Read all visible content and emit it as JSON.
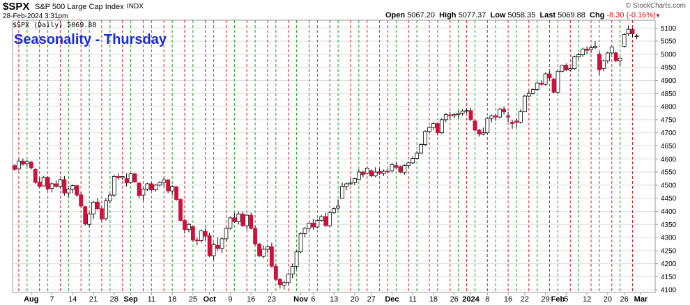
{
  "header": {
    "symbol": "$SPX",
    "name": "S&P 500 Large Cap Index",
    "exchange": "INDX",
    "datetime": "28-Feb-2024 3:31pm",
    "brand": "© StockCharts.com",
    "open_label": "Open",
    "open": "5067.20",
    "high_label": "High",
    "high": "5077.37",
    "low_label": "Low",
    "low": "5058.35",
    "last_label": "Last",
    "last": "5069.88",
    "chg_label": "Chg",
    "chg": "-8.30 (-0.16%)"
  },
  "legend": "$SPX (Daily) 5069.88",
  "overlay_title": "Seasonality - Thursday",
  "colors": {
    "up": "#ffffff",
    "down": "#d0103a",
    "red_line": "#d02020",
    "green_line": "#1a9a1a",
    "grid": "#dddddd",
    "overlay": "#1c2cd6"
  },
  "chart_data": {
    "type": "candlestick",
    "ylim": [
      4090,
      5130
    ],
    "yticks": [
      4100,
      4150,
      4200,
      4250,
      4300,
      4350,
      4400,
      4450,
      4500,
      4550,
      4600,
      4650,
      4700,
      4750,
      4800,
      4850,
      4900,
      4950,
      5000,
      5050,
      5100
    ],
    "xlabels": [
      {
        "label": "Aug",
        "bold": true,
        "i": 4
      },
      {
        "label": "7",
        "i": 9
      },
      {
        "label": "14",
        "i": 14
      },
      {
        "label": "21",
        "i": 19
      },
      {
        "label": "28",
        "i": 24
      },
      {
        "label": "Sep",
        "bold": true,
        "i": 28
      },
      {
        "label": "11",
        "i": 33
      },
      {
        "label": "18",
        "i": 38
      },
      {
        "label": "25",
        "i": 43
      },
      {
        "label": "Oct",
        "bold": true,
        "i": 47
      },
      {
        "label": "9",
        "i": 52
      },
      {
        "label": "16",
        "i": 57
      },
      {
        "label": "23",
        "i": 62
      },
      {
        "label": "Nov",
        "bold": true,
        "i": 69
      },
      {
        "label": "6",
        "i": 72
      },
      {
        "label": "13",
        "i": 77
      },
      {
        "label": "20",
        "i": 82
      },
      {
        "label": "27",
        "i": 86
      },
      {
        "label": "Dec",
        "bold": true,
        "i": 91
      },
      {
        "label": "11",
        "i": 96
      },
      {
        "label": "18",
        "i": 101
      },
      {
        "label": "26",
        "i": 106
      },
      {
        "label": "2024",
        "bold": true,
        "i": 110
      },
      {
        "label": "8",
        "i": 114
      },
      {
        "label": "16",
        "i": 119
      },
      {
        "label": "22",
        "i": 123
      },
      {
        "label": "29",
        "i": 128
      },
      {
        "label": "Feb",
        "bold": true,
        "i": 131
      },
      {
        "label": "5",
        "i": 133
      },
      {
        "label": "12",
        "i": 138
      },
      {
        "label": "20",
        "i": 143
      },
      {
        "label": "26",
        "i": 147
      },
      {
        "label": "Mar",
        "bold": true,
        "i": 151
      }
    ],
    "red_lines": [
      1,
      6,
      11,
      16,
      21,
      26,
      31,
      36,
      41,
      46,
      51,
      56,
      61,
      66,
      71,
      76,
      81,
      85,
      90,
      95,
      100,
      105,
      109,
      114,
      119,
      124,
      129,
      134,
      139,
      144,
      149
    ],
    "green_lines": [
      3,
      8,
      13,
      18,
      23,
      28,
      33,
      38,
      43,
      48,
      53,
      58,
      63,
      68,
      73,
      78,
      83,
      88,
      92,
      97,
      102,
      107,
      111,
      116,
      121,
      126,
      131,
      136,
      141,
      146
    ],
    "candles": [
      [
        4575,
        4580,
        4555,
        4560
      ],
      [
        4562,
        4600,
        4555,
        4592
      ],
      [
        4592,
        4602,
        4575,
        4580
      ],
      [
        4582,
        4596,
        4570,
        4590
      ],
      [
        4588,
        4592,
        4560,
        4566
      ],
      [
        4560,
        4565,
        4505,
        4510
      ],
      [
        4512,
        4528,
        4490,
        4495
      ],
      [
        4497,
        4535,
        4495,
        4530
      ],
      [
        4530,
        4534,
        4478,
        4485
      ],
      [
        4488,
        4510,
        4472,
        4505
      ],
      [
        4505,
        4518,
        4490,
        4495
      ],
      [
        4495,
        4525,
        4488,
        4521
      ],
      [
        4521,
        4535,
        4460,
        4470
      ],
      [
        4470,
        4490,
        4455,
        4485
      ],
      [
        4484,
        4502,
        4470,
        4498
      ],
      [
        4498,
        4500,
        4455,
        4462
      ],
      [
        4463,
        4473,
        4415,
        4420
      ],
      [
        4418,
        4420,
        4345,
        4352
      ],
      [
        4350,
        4395,
        4340,
        4390
      ],
      [
        4390,
        4440,
        4370,
        4435
      ],
      [
        4435,
        4450,
        4405,
        4410
      ],
      [
        4410,
        4420,
        4360,
        4370
      ],
      [
        4372,
        4450,
        4365,
        4440
      ],
      [
        4440,
        4470,
        4430,
        4462
      ],
      [
        4462,
        4540,
        4455,
        4533
      ],
      [
        4533,
        4545,
        4520,
        4528
      ],
      [
        4528,
        4535,
        4520,
        4533
      ],
      [
        4525,
        4545,
        4495,
        4508
      ],
      [
        4510,
        4546,
        4505,
        4543
      ],
      [
        4543,
        4548,
        4510,
        4512
      ],
      [
        4508,
        4512,
        4450,
        4460
      ],
      [
        4462,
        4490,
        4440,
        4485
      ],
      [
        4485,
        4508,
        4478,
        4505
      ],
      [
        4505,
        4510,
        4478,
        4482
      ],
      [
        4482,
        4505,
        4475,
        4500
      ],
      [
        4500,
        4515,
        4495,
        4510
      ],
      [
        4510,
        4530,
        4495,
        4520
      ],
      [
        4520,
        4523,
        4470,
        4478
      ],
      [
        4478,
        4500,
        4462,
        4495
      ],
      [
        4494,
        4496,
        4440,
        4445
      ],
      [
        4445,
        4450,
        4360,
        4365
      ],
      [
        4365,
        4372,
        4315,
        4330
      ],
      [
        4330,
        4355,
        4320,
        4350
      ],
      [
        4342,
        4345,
        4285,
        4290
      ],
      [
        4290,
        4300,
        4270,
        4288
      ],
      [
        4288,
        4330,
        4280,
        4325
      ],
      [
        4323,
        4335,
        4290,
        4305
      ],
      [
        4307,
        4318,
        4225,
        4230
      ],
      [
        4230,
        4280,
        4215,
        4273
      ],
      [
        4270,
        4300,
        4250,
        4258
      ],
      [
        4258,
        4300,
        4240,
        4295
      ],
      [
        4295,
        4340,
        4285,
        4335
      ],
      [
        4335,
        4380,
        4330,
        4375
      ],
      [
        4375,
        4393,
        4355,
        4360
      ],
      [
        4360,
        4400,
        4350,
        4390
      ],
      [
        4390,
        4400,
        4340,
        4345
      ],
      [
        4345,
        4390,
        4330,
        4385
      ],
      [
        4385,
        4395,
        4330,
        4335
      ],
      [
        4335,
        4345,
        4270,
        4275
      ],
      [
        4275,
        4280,
        4225,
        4230
      ],
      [
        4228,
        4270,
        4220,
        4255
      ],
      [
        4255,
        4270,
        4240,
        4265
      ],
      [
        4265,
        4280,
        4185,
        4190
      ],
      [
        4190,
        4200,
        4135,
        4140
      ],
      [
        4140,
        4145,
        4105,
        4120
      ],
      [
        4118,
        4135,
        4102,
        4128
      ],
      [
        4128,
        4165,
        4120,
        4160
      ],
      [
        4160,
        4200,
        4145,
        4190
      ],
      [
        4190,
        4250,
        4180,
        4245
      ],
      [
        4245,
        4320,
        4240,
        4315
      ],
      [
        4315,
        4340,
        4300,
        4335
      ],
      [
        4335,
        4360,
        4325,
        4355
      ],
      [
        4355,
        4370,
        4330,
        4340
      ],
      [
        4340,
        4370,
        4335,
        4365
      ],
      [
        4365,
        4385,
        4360,
        4380
      ],
      [
        4380,
        4395,
        4340,
        4345
      ],
      [
        4345,
        4400,
        4340,
        4395
      ],
      [
        4395,
        4415,
        4390,
        4410
      ],
      [
        4412,
        4445,
        4405,
        4420
      ],
      [
        4450,
        4510,
        4448,
        4495
      ],
      [
        4495,
        4510,
        4480,
        4505
      ],
      [
        4505,
        4525,
        4500,
        4508
      ],
      [
        4510,
        4528,
        4500,
        4525
      ],
      [
        4522,
        4560,
        4520,
        4550
      ],
      [
        4550,
        4555,
        4530,
        4540
      ],
      [
        4545,
        4570,
        4540,
        4565
      ],
      [
        4555,
        4560,
        4530,
        4535
      ],
      [
        4535,
        4568,
        4530,
        4550
      ],
      [
        4552,
        4562,
        4540,
        4545
      ],
      [
        4545,
        4560,
        4535,
        4553
      ],
      [
        4553,
        4562,
        4545,
        4550
      ],
      [
        4555,
        4585,
        4548,
        4578
      ],
      [
        4575,
        4590,
        4560,
        4568
      ],
      [
        4570,
        4575,
        4545,
        4550
      ],
      [
        4548,
        4580,
        4540,
        4575
      ],
      [
        4575,
        4590,
        4565,
        4585
      ],
      [
        4585,
        4610,
        4580,
        4602
      ],
      [
        4602,
        4630,
        4598,
        4622
      ],
      [
        4622,
        4660,
        4620,
        4655
      ],
      [
        4655,
        4710,
        4650,
        4705
      ],
      [
        4705,
        4725,
        4700,
        4720
      ],
      [
        4720,
        4740,
        4710,
        4735
      ],
      [
        4735,
        4740,
        4690,
        4700
      ],
      [
        4700,
        4755,
        4695,
        4750
      ],
      [
        4750,
        4775,
        4740,
        4770
      ],
      [
        4768,
        4780,
        4750,
        4765
      ],
      [
        4765,
        4775,
        4755,
        4770
      ],
      [
        4770,
        4785,
        4755,
        4775
      ],
      [
        4775,
        4790,
        4765,
        4783
      ],
      [
        4783,
        4793,
        4775,
        4785
      ],
      [
        4785,
        4795,
        4745,
        4750
      ],
      [
        4745,
        4750,
        4705,
        4710
      ],
      [
        4710,
        4715,
        4685,
        4695
      ],
      [
        4695,
        4720,
        4690,
        4700
      ],
      [
        4700,
        4760,
        4695,
        4755
      ],
      [
        4755,
        4770,
        4740,
        4765
      ],
      [
        4765,
        4770,
        4745,
        4760
      ],
      [
        4760,
        4795,
        4755,
        4790
      ],
      [
        4790,
        4800,
        4770,
        4780
      ],
      [
        4765,
        4780,
        4740,
        4760
      ],
      [
        4740,
        4750,
        4715,
        4735
      ],
      [
        4745,
        4755,
        4720,
        4740
      ],
      [
        4740,
        4790,
        4735,
        4780
      ],
      [
        4780,
        4845,
        4778,
        4840
      ],
      [
        4840,
        4860,
        4835,
        4850
      ],
      [
        4850,
        4870,
        4845,
        4865
      ],
      [
        4865,
        4895,
        4860,
        4890
      ],
      [
        4890,
        4900,
        4880,
        4885
      ],
      [
        4885,
        4930,
        4880,
        4925
      ],
      [
        4925,
        4935,
        4900,
        4910
      ],
      [
        4905,
        4910,
        4850,
        4855
      ],
      [
        4855,
        4940,
        4850,
        4935
      ],
      [
        4935,
        4960,
        4930,
        4958
      ],
      [
        4958,
        4965,
        4935,
        4940
      ],
      [
        4940,
        4950,
        4935,
        4945
      ],
      [
        4945,
        4995,
        4940,
        4990
      ],
      [
        4990,
        5005,
        4980,
        4998
      ],
      [
        4998,
        5025,
        4990,
        5020
      ],
      [
        5020,
        5030,
        5000,
        5015
      ],
      [
        5018,
        5032,
        5005,
        5025
      ],
      [
        5025,
        5050,
        5020,
        5030
      ],
      [
        5000,
        5010,
        4920,
        4940
      ],
      [
        4945,
        4980,
        4935,
        4975
      ],
      [
        4975,
        5010,
        4965,
        5005
      ],
      [
        5005,
        5030,
        5000,
        5028
      ],
      [
        5005,
        5010,
        4970,
        4975
      ],
      [
        4975,
        4990,
        4955,
        4985
      ],
      [
        5030,
        5080,
        5025,
        5075
      ],
      [
        5078,
        5110,
        5070,
        5095
      ],
      [
        5095,
        5100,
        5065,
        5078
      ],
      [
        5067,
        5077,
        5058,
        5070
      ]
    ]
  }
}
